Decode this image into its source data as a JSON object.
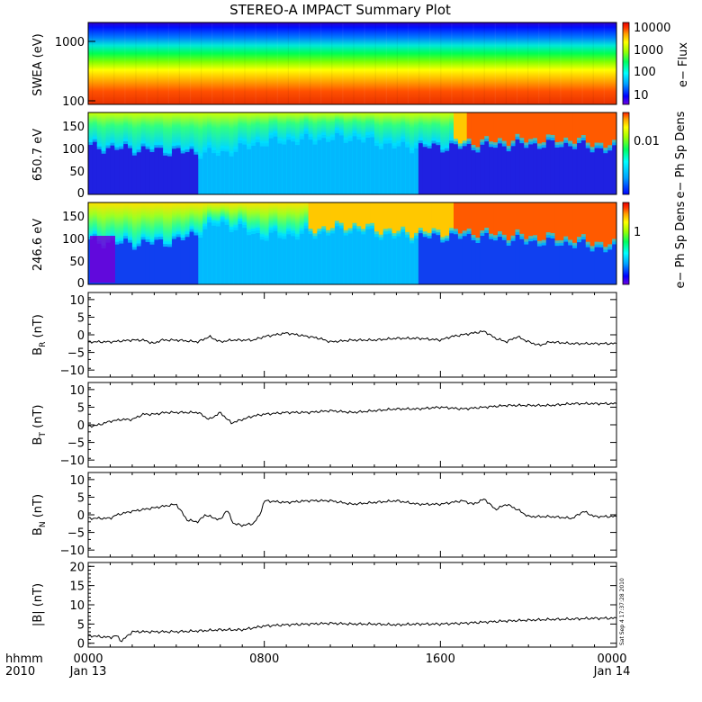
{
  "title": "STEREO-A IMPACT Summary Plot",
  "time_axis": {
    "row1_ticks": [
      "0000",
      "0800",
      "1600",
      "0000"
    ],
    "row2_ticks": [
      "Jan 13",
      "",
      "",
      "Jan 14"
    ],
    "left_label_1": "hhmm",
    "left_label_2": "2010"
  },
  "stamp": "Sat Sep  4 17:37:28 2010",
  "colors": {
    "spectrogram_scale": [
      "#7000e0",
      "#0000ff",
      "#00a0ff",
      "#00ffff",
      "#00ff60",
      "#a0ff00",
      "#ffff00",
      "#ffa000",
      "#ff3000",
      "#e80000"
    ],
    "line": "#000000"
  },
  "chart_data": [
    {
      "type": "heatmap",
      "panel": "swea",
      "ylabel": "SWEA (eV)",
      "yscale": "log",
      "ylim": [
        90,
        2000
      ],
      "yticks": [
        "1000",
        "100"
      ],
      "colorbar_label": "e− Flux",
      "colorbar_ticks": [
        "10000",
        "1000",
        "100",
        "10"
      ],
      "x": [
        0,
        3,
        6,
        9,
        12,
        15,
        18,
        21,
        24
      ],
      "energy_ev": [
        100,
        130,
        200,
        300,
        500,
        800,
        1200,
        1800
      ],
      "flux": [
        10000,
        8000,
        3000,
        1000,
        300,
        100,
        20,
        8
      ]
    },
    {
      "type": "heatmap",
      "panel": "pad_650",
      "ylabel": "650.7 eV",
      "ylim": [
        0,
        180
      ],
      "yticks": [
        "150",
        "100",
        "50",
        "0"
      ],
      "colorbar_label": "e− Ph Sp Dens",
      "colorbar_ticks": [
        "0.01"
      ],
      "x": [
        0,
        2,
        4,
        6,
        8,
        10,
        12,
        14,
        16,
        17.5,
        20,
        22,
        24
      ],
      "upper_boundary_deg": [
        110,
        105,
        100,
        95,
        120,
        125,
        130,
        110,
        110,
        110,
        115,
        115,
        100
      ],
      "field_aligned_level": [
        0.45,
        0.45,
        0.55,
        0.5,
        0.55,
        0.6,
        0.65,
        0.62,
        0.7,
        0.95,
        0.95,
        0.95,
        0.9
      ]
    },
    {
      "type": "heatmap",
      "panel": "pad_246",
      "ylabel": "246.6 eV",
      "ylim": [
        0,
        180
      ],
      "yticks": [
        "150",
        "100",
        "50",
        "0"
      ],
      "colorbar_label": "e− Ph Sp Dens",
      "colorbar_ticks": [
        "1"
      ],
      "x": [
        0,
        2,
        4,
        6,
        8,
        10,
        12,
        14,
        16,
        17.5,
        20,
        22,
        24
      ],
      "upper_boundary_deg": [
        100,
        95,
        100,
        140,
        110,
        115,
        125,
        110,
        110,
        110,
        100,
        95,
        80
      ],
      "field_aligned_level": [
        0.6,
        0.55,
        0.6,
        0.55,
        0.75,
        0.8,
        0.85,
        0.8,
        0.85,
        0.97,
        0.97,
        0.97,
        0.95
      ]
    },
    {
      "type": "line",
      "panel": "br",
      "ylabel": "B",
      "ylabel_sub": "R",
      "ylabel_unit": "(nT)",
      "ylim": [
        -12,
        12
      ],
      "yticks": [
        "10",
        "5",
        "0",
        "−5",
        "−10"
      ],
      "x": [
        0,
        1,
        2,
        2.5,
        3,
        3.3,
        4,
        5,
        5.5,
        6,
        6.5,
        7,
        7.5,
        8,
        9,
        10,
        10.5,
        11,
        12,
        13,
        14,
        15,
        16,
        16.5,
        17,
        17.5,
        18,
        18.5,
        19,
        19.5,
        20,
        20.5,
        21,
        22,
        23,
        24
      ],
      "y": [
        -2,
        -2,
        -1.5,
        -1.5,
        -2.5,
        -1.5,
        -1.5,
        -2,
        -0.5,
        -2,
        -1.5,
        -1.5,
        -1.5,
        -0.5,
        0.5,
        -0.5,
        -1,
        -2,
        -1.5,
        -1.5,
        -1,
        -1,
        -1.5,
        -0.5,
        0,
        0.5,
        1,
        -1,
        -2,
        -0.5,
        -2,
        -3,
        -2,
        -2.5,
        -2.5,
        -2.5
      ]
    },
    {
      "type": "line",
      "panel": "bt",
      "ylabel": "B",
      "ylabel_sub": "T",
      "ylabel_unit": "(nT)",
      "ylim": [
        -12,
        12
      ],
      "yticks": [
        "10",
        "5",
        "0",
        "−5",
        "−10"
      ],
      "x": [
        0,
        0.5,
        1,
        1.5,
        2,
        2.5,
        3,
        3.5,
        4,
        5,
        5.5,
        6,
        6.5,
        7,
        7.5,
        8,
        9,
        10,
        11,
        12,
        13,
        14,
        15,
        16,
        17,
        18,
        19,
        20,
        21,
        22,
        23,
        24
      ],
      "y": [
        -0.5,
        0,
        1,
        1.5,
        1.5,
        3,
        3,
        3.5,
        3.5,
        3.5,
        1.5,
        3.5,
        0.5,
        1.5,
        2.5,
        3,
        3.5,
        3.5,
        4,
        3.5,
        4,
        4.5,
        4.5,
        5,
        4.5,
        5,
        5.5,
        5.5,
        5.5,
        6,
        6,
        6
      ]
    },
    {
      "type": "line",
      "panel": "bn",
      "ylabel": "B",
      "ylabel_sub": "N",
      "ylabel_unit": "(nT)",
      "ylim": [
        -12,
        12
      ],
      "yticks": [
        "10",
        "5",
        "0",
        "−5",
        "−10"
      ],
      "x": [
        0,
        1,
        1.3,
        2,
        3,
        3.5,
        4,
        4.5,
        5,
        5.3,
        6,
        6.3,
        6.6,
        7,
        7.5,
        7.8,
        8,
        9,
        10,
        11,
        12,
        13,
        14,
        15,
        16,
        17,
        17.5,
        18,
        18.5,
        19,
        19.5,
        20,
        21,
        22,
        22.5,
        23,
        24
      ],
      "y": [
        -1,
        -1,
        0,
        1,
        2,
        2.5,
        3,
        -1.5,
        -2,
        0,
        -1.5,
        1.5,
        -2.5,
        -3,
        -2.5,
        0,
        4,
        3.5,
        4,
        4,
        3,
        3.5,
        4,
        3,
        3,
        4,
        3,
        4.5,
        1.5,
        3,
        1.5,
        -0.5,
        -0.5,
        -1,
        1,
        -0.5,
        -0.5
      ]
    },
    {
      "type": "line",
      "panel": "bmag",
      "ylabel": "|B| (nT)",
      "ylim": [
        -1,
        21
      ],
      "yticks": [
        "20",
        "15",
        "10",
        "5",
        "0"
      ],
      "x": [
        0,
        1,
        1.3,
        1.5,
        2,
        3,
        4,
        5,
        6,
        7,
        8,
        9,
        10,
        11,
        12,
        13,
        14,
        15,
        16,
        17,
        18,
        19,
        20,
        21,
        22,
        23,
        24
      ],
      "y": [
        2,
        1.5,
        2,
        0.5,
        3,
        3,
        3,
        3.2,
        3.5,
        3.5,
        4.5,
        4.8,
        5,
        5.2,
        5,
        5,
        4.8,
        5,
        5,
        5.2,
        5.5,
        5.8,
        6,
        6.2,
        6.3,
        6.5,
        6.5
      ]
    }
  ]
}
